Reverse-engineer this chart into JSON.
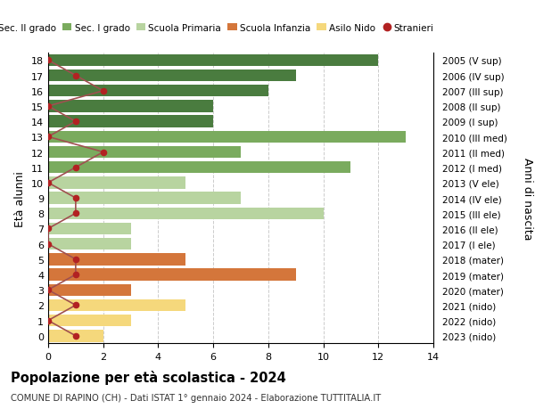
{
  "ages": [
    18,
    17,
    16,
    15,
    14,
    13,
    12,
    11,
    10,
    9,
    8,
    7,
    6,
    5,
    4,
    3,
    2,
    1,
    0
  ],
  "years": [
    "2005 (V sup)",
    "2006 (IV sup)",
    "2007 (III sup)",
    "2008 (II sup)",
    "2009 (I sup)",
    "2010 (III med)",
    "2011 (II med)",
    "2012 (I med)",
    "2013 (V ele)",
    "2014 (IV ele)",
    "2015 (III ele)",
    "2016 (II ele)",
    "2017 (I ele)",
    "2018 (mater)",
    "2019 (mater)",
    "2020 (mater)",
    "2021 (nido)",
    "2022 (nido)",
    "2023 (nido)"
  ],
  "values": [
    12,
    9,
    8,
    6,
    6,
    13,
    7,
    11,
    5,
    7,
    10,
    3,
    3,
    5,
    9,
    3,
    5,
    3,
    2
  ],
  "stranieri": [
    0,
    1,
    2,
    0,
    1,
    0,
    2,
    1,
    0,
    1,
    1,
    0,
    0,
    1,
    1,
    0,
    1,
    0,
    1
  ],
  "bar_colors": [
    "#4a7c3f",
    "#4a7c3f",
    "#4a7c3f",
    "#4a7c3f",
    "#4a7c3f",
    "#7aab5e",
    "#7aab5e",
    "#7aab5e",
    "#b8d4a0",
    "#b8d4a0",
    "#b8d4a0",
    "#b8d4a0",
    "#b8d4a0",
    "#d4763b",
    "#d4763b",
    "#d4763b",
    "#f5d87c",
    "#f5d87c",
    "#f5d87c"
  ],
  "legend_labels": [
    "Sec. II grado",
    "Sec. I grado",
    "Scuola Primaria",
    "Scuola Infanzia",
    "Asilo Nido",
    "Stranieri"
  ],
  "legend_colors": [
    "#4a7c3f",
    "#7aab5e",
    "#b8d4a0",
    "#d4763b",
    "#f5d87c",
    "#b22222"
  ],
  "stranieri_color": "#b22222",
  "stranieri_line_color": "#a05050",
  "title": "Popolazione per età scolastica - 2024",
  "subtitle": "COMUNE DI RAPINO (CH) - Dati ISTAT 1° gennaio 2024 - Elaborazione TUTTITALIA.IT",
  "ylabel": "Età alunni",
  "right_ylabel": "Anni di nascita",
  "xlim": [
    0,
    14
  ],
  "xticks": [
    0,
    2,
    4,
    6,
    8,
    10,
    12,
    14
  ],
  "background_color": "#ffffff",
  "grid_color": "#cccccc"
}
